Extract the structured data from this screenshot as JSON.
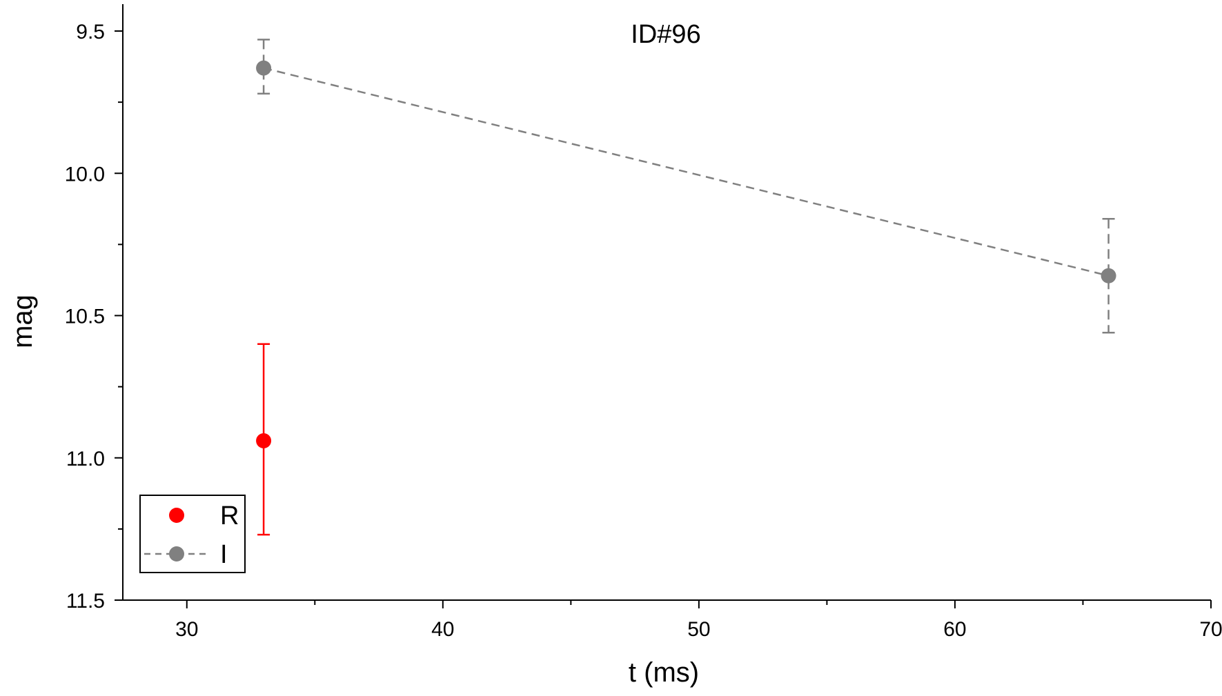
{
  "chart_data": {
    "type": "scatter",
    "title": "ID#96",
    "xlabel": "t (ms)",
    "ylabel": "mag",
    "xlim": [
      27.5,
      70
    ],
    "ylim": [
      9.5,
      11.5
    ],
    "y_inverted": true,
    "y_visible_top": 9.42,
    "x_ticks": [
      30,
      40,
      50,
      60,
      70
    ],
    "x_tick_labels": [
      "30",
      "40",
      "50",
      "60",
      "70"
    ],
    "y_ticks": [
      9.5,
      10.0,
      10.5,
      11.0,
      11.5
    ],
    "y_tick_labels": [
      "9.5",
      "10.0",
      "10.5",
      "11.0",
      "11.5"
    ],
    "grid": false,
    "legend_position": "bottom-left",
    "series": [
      {
        "name": "R",
        "color": "#ff0000",
        "marker": "circle",
        "line": "none",
        "points": [
          {
            "x": 33,
            "y": 10.94,
            "err_low": 10.6,
            "err_high": 11.27
          }
        ]
      },
      {
        "name": "I",
        "color": "#808080",
        "marker": "circle",
        "line": "dashed",
        "points": [
          {
            "x": 33,
            "y": 9.63,
            "err_low": 9.53,
            "err_high": 9.72
          },
          {
            "x": 66,
            "y": 10.36,
            "err_low": 10.16,
            "err_high": 10.56
          }
        ]
      }
    ]
  }
}
